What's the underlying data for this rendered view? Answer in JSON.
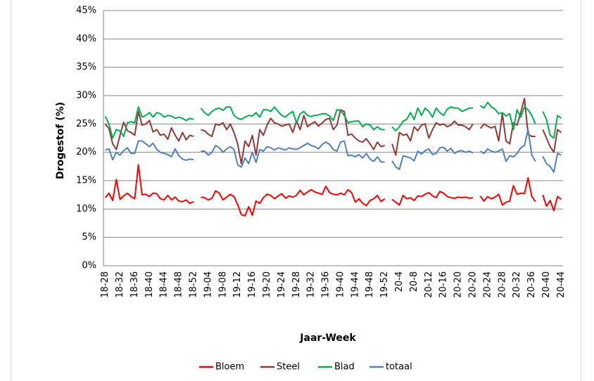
{
  "chart_data": {
    "type": "line",
    "y_label": "Drogestof (%)",
    "x_label": "Jaar-Week",
    "categories": [
      "18-28",
      null,
      null,
      null,
      "18-32",
      null,
      null,
      null,
      "18-36",
      null,
      null,
      null,
      "18-40",
      null,
      null,
      null,
      "18-44",
      null,
      null,
      null,
      "18-48",
      null,
      null,
      null,
      "18-52",
      null,
      null,
      null,
      "19-04",
      null,
      null,
      null,
      "19-08",
      null,
      null,
      null,
      "19-12",
      null,
      null,
      null,
      "19-16",
      null,
      null,
      null,
      "19-20",
      null,
      null,
      null,
      "19-24",
      null,
      null,
      null,
      "19-28",
      null,
      null,
      null,
      "19-32",
      null,
      null,
      null,
      "19-36",
      null,
      null,
      null,
      "19-40",
      null,
      null,
      null,
      "19-44",
      null,
      null,
      null,
      "19-48",
      null,
      null,
      null,
      "19-52",
      null,
      null,
      null,
      "20-4",
      null,
      null,
      null,
      "20-8",
      null,
      null,
      null,
      "20-12",
      null,
      null,
      null,
      "20-16",
      null,
      null,
      null,
      "20-20",
      null,
      null,
      null,
      "20-20",
      null,
      null,
      null,
      "20-24",
      null,
      null,
      null,
      "20-28",
      null,
      null,
      null,
      "20-32",
      null,
      null,
      null,
      "20-36",
      null,
      null,
      null,
      "20-40",
      null,
      null,
      null,
      "20-44"
    ],
    "series": [
      {
        "name": "Bloem",
        "color": "#ff0000",
        "values": [
          12,
          12.8,
          11.5,
          15.2,
          11.7,
          12.3,
          12.8,
          12.2,
          11.8,
          17.8,
          12.5,
          12.6,
          12.2,
          12.8,
          12.7,
          11.8,
          11.6,
          12.4,
          11.6,
          12.1,
          11.4,
          11.3,
          11.6,
          11.0,
          11.3,
          null,
          12.1,
          12.0,
          11.6,
          11.9,
          13.2,
          12.8,
          11.6,
          12.1,
          12.6,
          12.2,
          10.8,
          9.0,
          8.8,
          10.4,
          8.9,
          11.4,
          11.0,
          12.0,
          12.6,
          12.4,
          11.8,
          12.3,
          12.7,
          11.9,
          12.3,
          12.1,
          12.4,
          13.3,
          12.5,
          13.0,
          13.4,
          13.0,
          12.8,
          12.6,
          14.0,
          12.9,
          12.6,
          12.5,
          12.8,
          12.5,
          13.4,
          12.9,
          11.2,
          11.8,
          11.0,
          10.6,
          11.5,
          11.8,
          12.4,
          11.3,
          11.8,
          null,
          11.7,
          11.2,
          10.7,
          12.4,
          11.8,
          12.0,
          11.5,
          12.3,
          12.2,
          12.6,
          12.9,
          12.3,
          12.0,
          13.1,
          12.8,
          12.2,
          12.0,
          11.9,
          12.1,
          12.0,
          12.1,
          11.9,
          12.0,
          null,
          12.3,
          11.4,
          12.2,
          11.8,
          12.1,
          12.6,
          10.7,
          11.2,
          11.4,
          14.1,
          12.6,
          12.8,
          12.7,
          15.5,
          12.2,
          11.3,
          null,
          12.5,
          10.5,
          11.5,
          9.7,
          12.2,
          11.7
        ]
      },
      {
        "name": "Steel",
        "color": "#953735",
        "values": [
          25.0,
          24.2,
          21.5,
          20.5,
          23.0,
          25.3,
          23.8,
          23.5,
          23.0,
          27.2,
          24.8,
          25.0,
          25.6,
          23.6,
          24.0,
          23.0,
          23.2,
          22.3,
          24.3,
          23.0,
          22.0,
          23.5,
          22.2,
          23.0,
          22.8,
          null,
          24.0,
          23.8,
          23.2,
          22.8,
          25.0,
          24.8,
          25.2,
          24.0,
          25.0,
          23.5,
          21.5,
          18.0,
          22.0,
          21.0,
          23.0,
          19.5,
          24.0,
          23.0,
          24.8,
          26.0,
          25.2,
          25.0,
          24.6,
          24.8,
          25.0,
          23.5,
          25.5,
          24.0,
          26.5,
          24.5,
          25.0,
          25.4,
          24.6,
          25.2,
          25.8,
          26.0,
          24.0,
          24.8,
          27.5,
          27.2,
          23.0,
          23.2,
          22.5,
          22.0,
          21.8,
          22.4,
          21.5,
          20.5,
          21.8,
          21.0,
          21.2,
          null,
          21.5,
          19.5,
          23.5,
          23.0,
          23.2,
          22.0,
          24.5,
          23.8,
          24.8,
          25.0,
          22.5,
          24.0,
          25.2,
          24.8,
          25.0,
          24.5,
          24.8,
          25.5,
          24.8,
          24.8,
          24.5,
          24.0,
          25.0,
          null,
          24.2,
          25.0,
          24.6,
          24.3,
          24.6,
          22.0,
          26.8,
          22.0,
          21.5,
          25.2,
          24.8,
          27.0,
          29.5,
          23.2,
          22.8,
          22.8,
          null,
          24.0,
          22.5,
          21.0,
          20.0,
          24.0,
          23.5
        ]
      },
      {
        "name": "Blad",
        "color": "#00b050",
        "values": [
          26.3,
          25.0,
          22.5,
          24.0,
          23.8,
          22.8,
          25.2,
          25.4,
          25.2,
          28.0,
          26.2,
          26.5,
          27.0,
          26.2,
          27.0,
          26.8,
          26.2,
          26.5,
          26.4,
          26.0,
          26.2,
          26.0,
          25.6,
          26.0,
          25.8,
          null,
          27.8,
          27.0,
          26.5,
          27.2,
          27.6,
          27.8,
          27.4,
          28.0,
          28.0,
          26.5,
          26.0,
          25.8,
          26.2,
          26.5,
          26.4,
          27.0,
          26.2,
          27.5,
          27.5,
          27.2,
          28.0,
          27.2,
          26.5,
          26.2,
          26.8,
          27.2,
          25.2,
          26.8,
          27.2,
          26.5,
          26.3,
          26.5,
          26.6,
          26.8,
          26.8,
          26.4,
          25.6,
          27.5,
          27.4,
          26.5,
          25.2,
          25.4,
          25.5,
          25.5,
          24.5,
          25.0,
          24.8,
          24.0,
          24.5,
          24.0,
          24.0,
          null,
          24.5,
          23.8,
          24.5,
          25.5,
          25.8,
          27.0,
          25.8,
          27.8,
          26.5,
          27.8,
          27.2,
          26.2,
          27.8,
          27.0,
          26.5,
          27.6,
          28.0,
          27.8,
          27.8,
          27.2,
          27.5,
          27.8,
          27.8,
          null,
          28.2,
          27.8,
          28.8,
          28.0,
          27.6,
          26.8,
          27.0,
          26.4,
          26.8,
          24.0,
          27.5,
          26.2,
          28.0,
          27.5,
          26.5,
          25.0,
          null,
          27.2,
          25.8,
          23.0,
          22.5,
          26.5,
          26.0
        ]
      },
      {
        "name": "totaal",
        "color": "#4f81bd",
        "values": [
          20.4,
          20.6,
          18.7,
          20.0,
          19.5,
          20.3,
          20.8,
          19.8,
          19.8,
          22.0,
          22.0,
          21.5,
          21.0,
          21.6,
          20.5,
          20.0,
          19.8,
          19.6,
          19.2,
          20.6,
          19.4,
          18.8,
          18.6,
          18.8,
          18.7,
          null,
          20.2,
          20.2,
          19.5,
          20.0,
          21.2,
          20.8,
          20.0,
          20.6,
          21.0,
          20.5,
          17.8,
          17.4,
          19.0,
          18.0,
          20.0,
          18.2,
          20.5,
          20.2,
          21.0,
          20.8,
          20.4,
          20.8,
          20.6,
          20.4,
          20.8,
          20.6,
          20.5,
          20.8,
          21.2,
          21.6,
          21.2,
          21.0,
          20.6,
          21.4,
          21.8,
          21.4,
          20.5,
          20.2,
          21.8,
          22.0,
          19.4,
          19.5,
          19.2,
          19.6,
          19.0,
          19.8,
          18.8,
          18.4,
          19.2,
          18.3,
          18.3,
          null,
          18.5,
          17.4,
          17.0,
          19.4,
          19.2,
          19.0,
          18.5,
          20.2,
          19.7,
          20.3,
          20.6,
          19.6,
          19.8,
          20.8,
          20.9,
          20.2,
          20.7,
          19.8,
          20.2,
          20.3,
          20.0,
          20.2,
          19.9,
          null,
          20.2,
          19.8,
          20.6,
          20.2,
          20.0,
          20.2,
          20.6,
          18.4,
          19.4,
          19.2,
          19.8,
          20.8,
          21.2,
          24.0,
          19.5,
          18.4,
          null,
          19.3,
          18.0,
          17.5,
          16.5,
          19.8,
          19.5
        ]
      }
    ],
    "ylim": [
      0,
      45
    ],
    "yticks": [
      {
        "value": 0,
        "label": "0%"
      },
      {
        "value": 5,
        "label": "5%"
      },
      {
        "value": 10,
        "label": "10%"
      },
      {
        "value": 15,
        "label": "15%"
      },
      {
        "value": 20,
        "label": "20%"
      },
      {
        "value": 25,
        "label": "25%"
      },
      {
        "value": 30,
        "label": "30%"
      },
      {
        "value": 35,
        "label": "35%"
      },
      {
        "value": 40,
        "label": "40%"
      },
      {
        "value": 45,
        "label": "45%"
      }
    ],
    "grid": true,
    "legend": "bottom"
  }
}
